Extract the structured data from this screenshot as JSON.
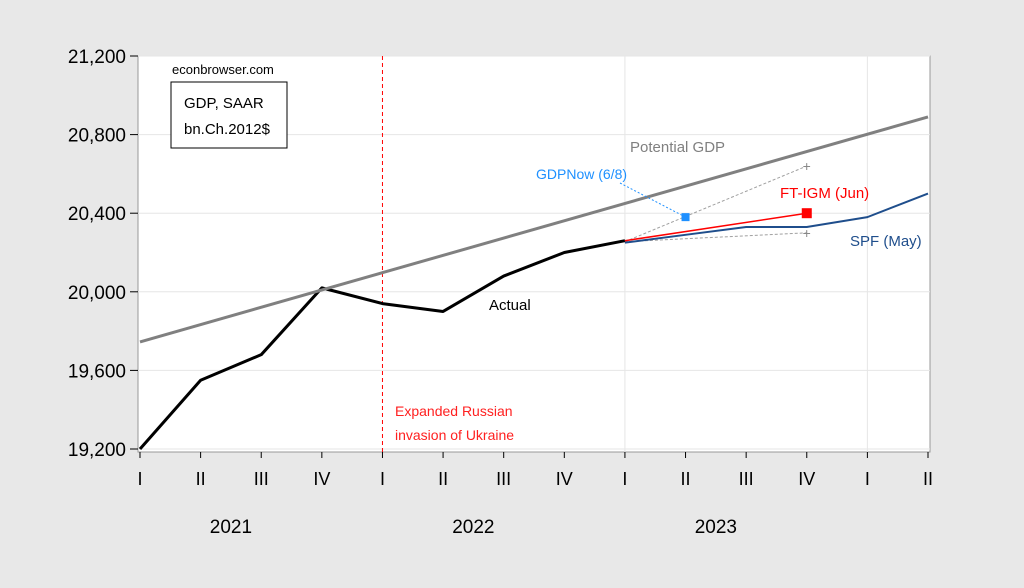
{
  "chart_data": {
    "type": "line",
    "site_label": "econbrowser.com",
    "legend_box": [
      "GDP, SAAR",
      "bn.Ch.2012$"
    ],
    "x_ticks": [
      "I",
      "II",
      "III",
      "IV",
      "I",
      "II",
      "III",
      "IV",
      "I",
      "II",
      "III",
      "IV",
      "I",
      "II"
    ],
    "x_years": [
      {
        "label": "2021",
        "start": 0,
        "end": 3
      },
      {
        "label": "2022",
        "start": 4,
        "end": 7
      },
      {
        "label": "2023",
        "start": 8,
        "end": 11
      }
    ],
    "y_ticks": [
      "19,200",
      "19,600",
      "20,000",
      "20,400",
      "20,800",
      "21,200"
    ],
    "y_tick_values": [
      19200,
      19600,
      20000,
      20400,
      20800,
      21200
    ],
    "ylim": [
      19200,
      21200
    ],
    "grid": true,
    "series": [
      {
        "name": "Actual",
        "color": "#000000",
        "x": [
          0,
          1,
          2,
          3,
          4,
          5,
          6,
          7,
          8
        ],
        "values": [
          19200,
          19550,
          19680,
          20020,
          19940,
          19900,
          20080,
          20200,
          20260
        ]
      },
      {
        "name": "Potential GDP",
        "color": "#808080",
        "x": [
          0,
          13
        ],
        "values": [
          19745,
          20890
        ]
      },
      {
        "name": "SPF (May)",
        "color": "#1f4e8c",
        "x": [
          8,
          9,
          10,
          11,
          12,
          13
        ],
        "values": [
          20250,
          20290,
          20330,
          20330,
          20380,
          20500
        ]
      },
      {
        "name": "FT-IGM (Jun)",
        "color": "#ff0000",
        "x": [
          8,
          11
        ],
        "values": [
          20260,
          20400
        ]
      },
      {
        "name": "GDPNow (6/8)",
        "color": "#1e90ff",
        "x": [
          9
        ],
        "values": [
          20380
        ]
      }
    ],
    "ft_igm_band": {
      "color": "#a0a0a0",
      "x": [
        8,
        11
      ],
      "upper": [
        20255,
        20640
      ],
      "lower": [
        20255,
        20300
      ]
    },
    "event_line": {
      "x": 4,
      "color": "#ff0000",
      "label": [
        "Expanded Russian",
        "invasion of Ukraine"
      ]
    }
  }
}
